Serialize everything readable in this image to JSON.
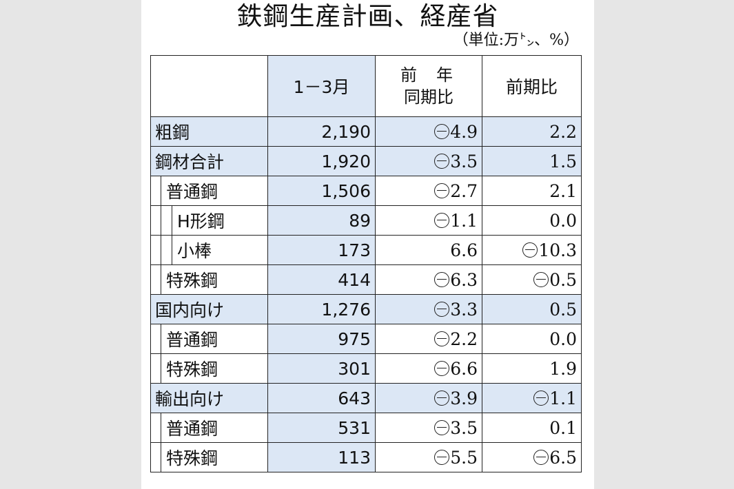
{
  "title": "鉄鋼生産計画、経産省",
  "unit": "（単位:万㌧、%）",
  "headers": {
    "col_q": "1－3月",
    "col_yoy_line1": "前年",
    "col_yoy_line2": "同期比",
    "col_qoq": "前期比"
  },
  "rows": [
    {
      "label": "粗鋼",
      "level": 0,
      "q": "2,190",
      "yoy_neg": true,
      "yoy": "4.9",
      "qoq_neg": false,
      "qoq": "2.2"
    },
    {
      "label": "鋼材合計",
      "level": 0,
      "q": "1,920",
      "yoy_neg": true,
      "yoy": "3.5",
      "qoq_neg": false,
      "qoq": "1.5"
    },
    {
      "label": "普通鋼",
      "level": 1,
      "q": "1,506",
      "yoy_neg": true,
      "yoy": "2.7",
      "qoq_neg": false,
      "qoq": "2.1"
    },
    {
      "label": "H形鋼",
      "level": 2,
      "q": "89",
      "yoy_neg": true,
      "yoy": "1.1",
      "qoq_neg": false,
      "qoq": "0.0"
    },
    {
      "label": "小棒",
      "level": 2,
      "q": "173",
      "yoy_neg": false,
      "yoy": "6.6",
      "qoq_neg": true,
      "qoq": "10.3"
    },
    {
      "label": "特殊鋼",
      "level": 1,
      "q": "414",
      "yoy_neg": true,
      "yoy": "6.3",
      "qoq_neg": true,
      "qoq": "0.5"
    },
    {
      "label": "国内向け",
      "level": 0,
      "q": "1,276",
      "yoy_neg": true,
      "yoy": "3.3",
      "qoq_neg": false,
      "qoq": "0.5"
    },
    {
      "label": "普通鋼",
      "level": 1,
      "q": "975",
      "yoy_neg": true,
      "yoy": "2.2",
      "qoq_neg": false,
      "qoq": "0.0"
    },
    {
      "label": "特殊鋼",
      "level": 1,
      "q": "301",
      "yoy_neg": true,
      "yoy": "6.6",
      "qoq_neg": false,
      "qoq": "1.9"
    },
    {
      "label": "輸出向け",
      "level": 0,
      "q": "643",
      "yoy_neg": true,
      "yoy": "3.9",
      "qoq_neg": true,
      "qoq": "1.1"
    },
    {
      "label": "普通鋼",
      "level": 1,
      "q": "531",
      "yoy_neg": true,
      "yoy": "3.5",
      "qoq_neg": false,
      "qoq": "0.1"
    },
    {
      "label": "特殊鋼",
      "level": 1,
      "q": "113",
      "yoy_neg": true,
      "yoy": "5.5",
      "qoq_neg": true,
      "qoq": "6.5"
    }
  ],
  "negative_marker_icon": "circled-minus-icon",
  "colors": {
    "highlight": "#dce7f5",
    "background": "#e6e6e6"
  }
}
